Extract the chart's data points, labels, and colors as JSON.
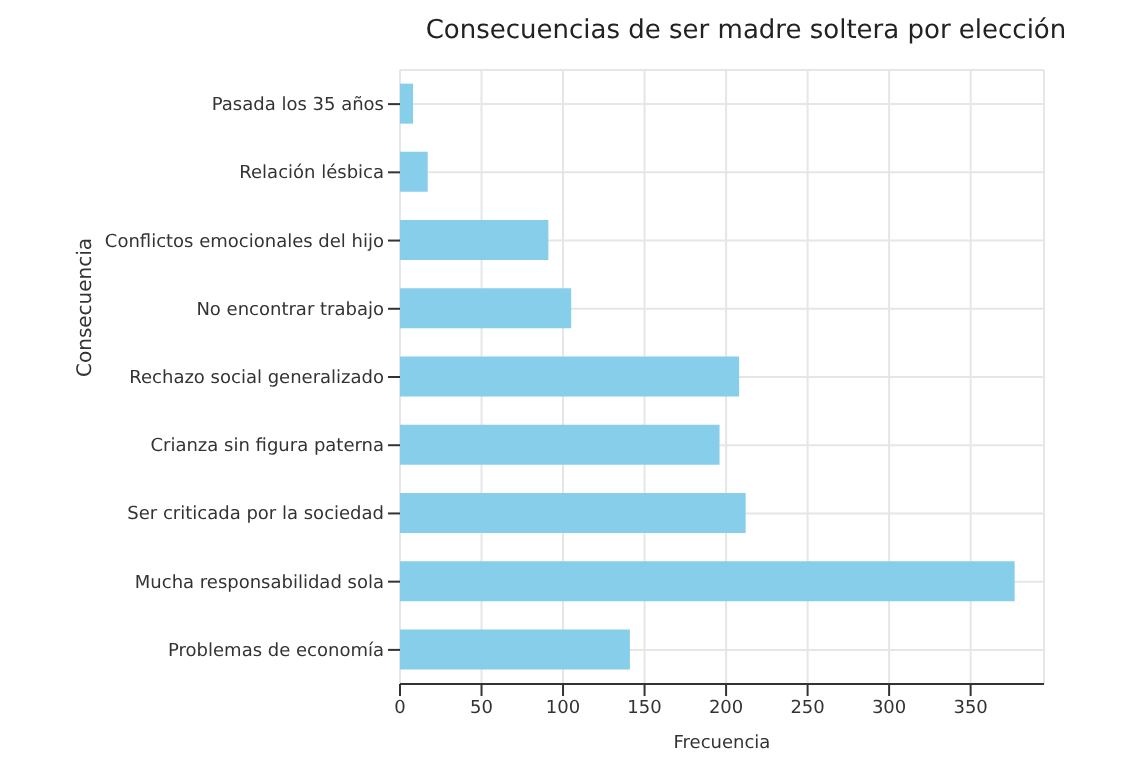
{
  "chart_data": {
    "type": "bar",
    "orientation": "horizontal",
    "title": "Consecuencias de ser madre soltera por elección",
    "xlabel": "Frecuencia",
    "ylabel": "Consecuencia",
    "categories": [
      "Pasada los 35 años",
      "Relación lésbica",
      "Conflictos emocionales del hijo",
      "No encontrar trabajo",
      "Rechazo social generalizado",
      "Crianza sin figura paterna",
      "Ser criticada por la sociedad",
      "Mucha responsabilidad sola",
      "Problemas de economía"
    ],
    "values": [
      8,
      17,
      91,
      105,
      208,
      196,
      212,
      377,
      141
    ],
    "color": "#87ceeb",
    "xlim": [
      0,
      395
    ],
    "xticks": [
      0,
      50,
      100,
      150,
      200,
      250,
      300,
      350
    ],
    "grid": true
  }
}
